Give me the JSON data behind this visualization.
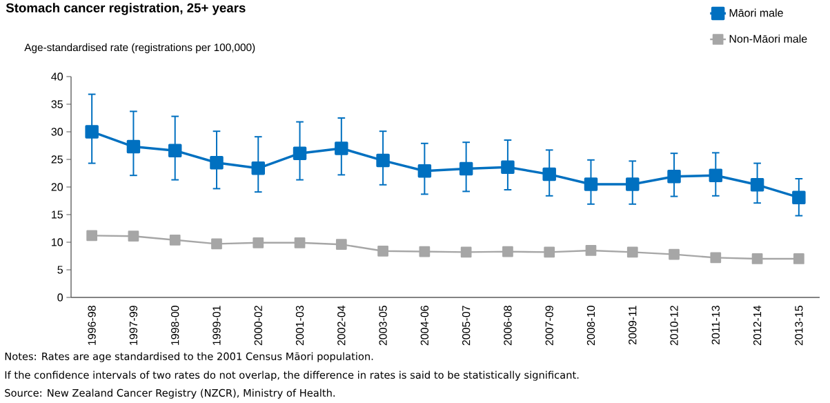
{
  "chart_data": {
    "type": "line",
    "title": "Stomach cancer registration, 25+ years",
    "ylabel": "Age-standardised rate (registrations per 100,000)",
    "categories": [
      "1996-98",
      "1997-99",
      "1998-00",
      "1999-01",
      "2000-02",
      "2001-03",
      "2002-04",
      "2003-05",
      "2004-06",
      "2005-07",
      "2006-08",
      "2007-09",
      "2008-10",
      "2009-11",
      "2010-12",
      "2011-13",
      "2012-14",
      "2013-15"
    ],
    "series": [
      {
        "name": "Māori male",
        "color": "#0070c0",
        "values": [
          30.0,
          27.3,
          26.6,
          24.4,
          23.4,
          26.1,
          27.0,
          24.8,
          22.9,
          23.3,
          23.6,
          22.3,
          20.5,
          20.5,
          21.9,
          22.1,
          20.4,
          18.1
        ],
        "errors": [
          [
            24.3,
            36.8
          ],
          [
            22.1,
            33.7
          ],
          [
            21.3,
            32.8
          ],
          [
            19.7,
            30.1
          ],
          [
            19.1,
            29.1
          ],
          [
            21.3,
            31.8
          ],
          [
            22.2,
            32.5
          ],
          [
            20.4,
            30.1
          ],
          [
            18.7,
            27.9
          ],
          [
            19.2,
            28.1
          ],
          [
            19.5,
            28.5
          ],
          [
            18.4,
            26.7
          ],
          [
            16.9,
            24.9
          ],
          [
            16.9,
            24.7
          ],
          [
            18.3,
            26.1
          ],
          [
            18.4,
            26.2
          ],
          [
            17.1,
            24.3
          ],
          [
            14.8,
            21.5
          ]
        ]
      },
      {
        "name": "Non-Māori male",
        "color": "#a6a6a6",
        "values": [
          11.2,
          11.1,
          10.4,
          9.7,
          9.9,
          9.9,
          9.6,
          8.4,
          8.3,
          8.2,
          8.3,
          8.2,
          8.5,
          8.2,
          7.8,
          7.2,
          7.0,
          7.0
        ]
      }
    ],
    "ylim": [
      0,
      40
    ],
    "yticks": [
      0,
      5,
      10,
      15,
      20,
      25,
      30,
      35,
      40
    ],
    "grid": false,
    "legend": "top right",
    "marker": "square",
    "line_style": "solid",
    "annotations": [
      "Notes: Rates are age standardised to the 2001 Census Māori population.",
      "If the confidence intervals of two rates do not overlap, the difference in rates is said to be statistically significant.",
      "Source: New Zealand Cancer Registry (NZCR), Ministry of Health."
    ]
  }
}
